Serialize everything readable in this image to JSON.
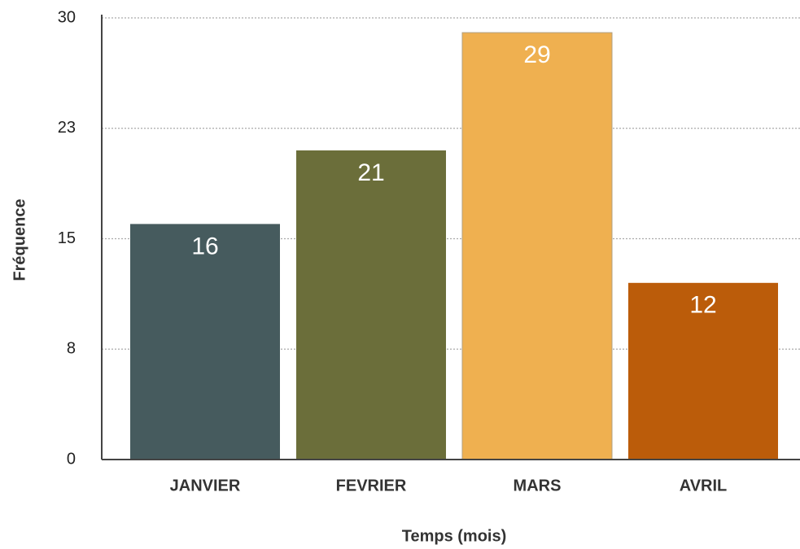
{
  "chart_data": {
    "type": "bar",
    "categories": [
      "JANVIER",
      "FEVRIER",
      "MARS",
      "AVRIL"
    ],
    "values": [
      16,
      21,
      29,
      12
    ],
    "colors": [
      "#465b5e",
      "#6b6e3a",
      "#efb050",
      "#bb5c0a"
    ],
    "xlabel": "Temps (mois)",
    "ylabel": "Fréquence",
    "ylim": [
      0,
      30
    ],
    "yticks": [
      0,
      {
        "value": 7.5,
        "label": "8"
      },
      15,
      {
        "value": 22.5,
        "label": "23"
      },
      30
    ],
    "grid": true
  }
}
